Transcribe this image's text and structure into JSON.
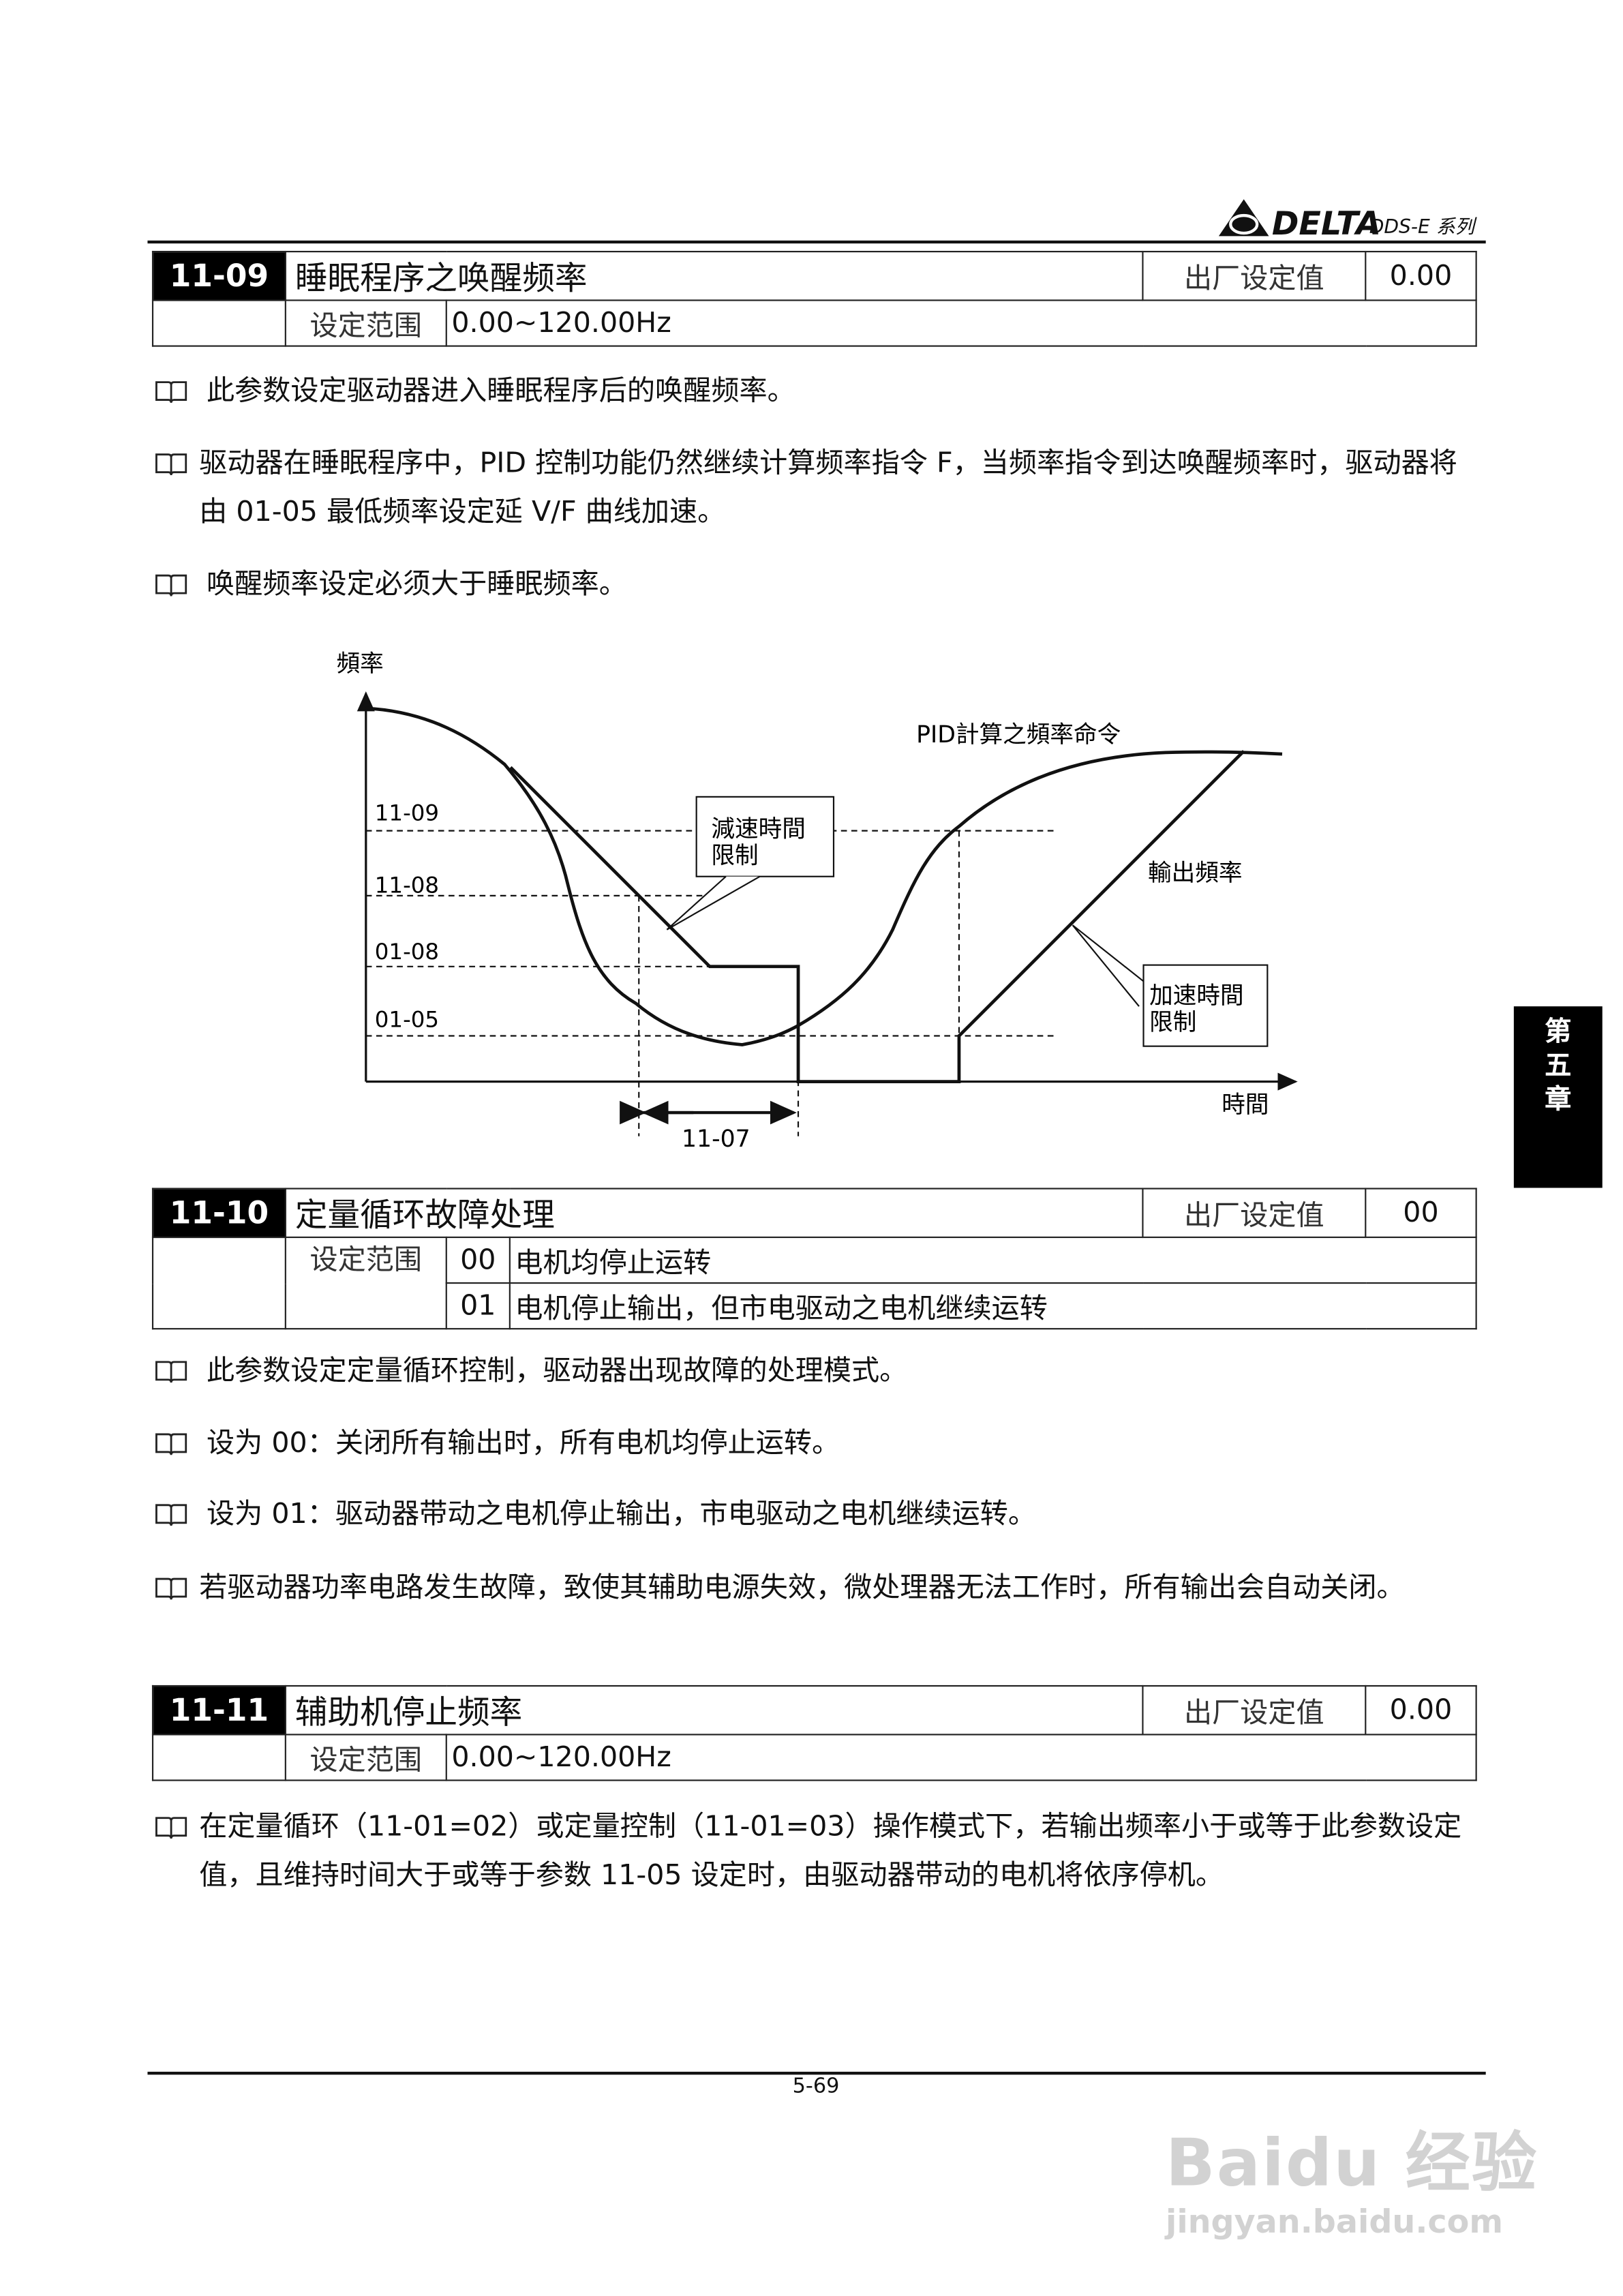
{
  "header": {
    "brand": "DELTA",
    "series": "DDS-E 系列"
  },
  "side_tab": {
    "chars": [
      "第",
      "五",
      "章"
    ]
  },
  "params": [
    {
      "code": "11-09",
      "title": "睡眠程序之唤醒频率",
      "factory_label": "出厂设定值",
      "factory_value": "0.00",
      "range_label": "设定范围",
      "range_value": "0.00~120.00Hz",
      "notes": [
        "此参数设定驱动器进入睡眠程序后的唤醒频率。",
        "驱动器在睡眠程序中，PID 控制功能仍然继续计算频率指令 F，当频率指令到达唤醒频率时，驱动器将由 01-05 最低频率设定延 V/F 曲线加速。",
        "唤醒频率设定必须大于睡眠频率。"
      ]
    },
    {
      "code": "11-10",
      "title": "定量循环故障处理",
      "factory_label": "出厂设定值",
      "factory_value": "00",
      "range_label": "设定范围",
      "options": [
        {
          "value": "00",
          "text": "电机均停止运转"
        },
        {
          "value": "01",
          "text": "电机停止输出，但市电驱动之电机继续运转"
        }
      ],
      "notes": [
        "此参数设定定量循环控制，驱动器出现故障的处理模式。",
        "设为 00：关闭所有输出时，所有电机均停止运转。",
        "设为 01：驱动器带动之电机停止输出，市电驱动之电机继续运转。",
        "若驱动器功率电路发生故障，致使其辅助电源失效，微处理器无法工作时，所有输出会自动关闭。"
      ]
    },
    {
      "code": "11-11",
      "title": "辅助机停止频率",
      "factory_label": "出厂设定值",
      "factory_value": "0.00",
      "range_label": "设定范围",
      "range_value": "0.00~120.00Hz",
      "notes": [
        "在定量循环（11-01=02）或定量控制（11-01=03）操作模式下，若输出频率小于或等于此参数设定值，且维持时间大于或等于参数 11-05 设定时，由驱动器带动的电机将依序停机。"
      ]
    }
  ],
  "diagram": {
    "y_axis_label": "頻率",
    "x_axis_label": "時間",
    "levels": [
      "11-09",
      "11-08",
      "01-08",
      "01-05"
    ],
    "pid_label": "PID計算之頻率命令",
    "output_label": "輸出頻率",
    "decel_box": [
      "減速時間",
      "限制"
    ],
    "accel_box": [
      "加速時間",
      "限制"
    ],
    "interval_label": "11-07"
  },
  "footer": {
    "page_number": "5-69"
  },
  "watermark": {
    "text": "Baidu 经验",
    "url": "jingyan.baidu.com"
  }
}
